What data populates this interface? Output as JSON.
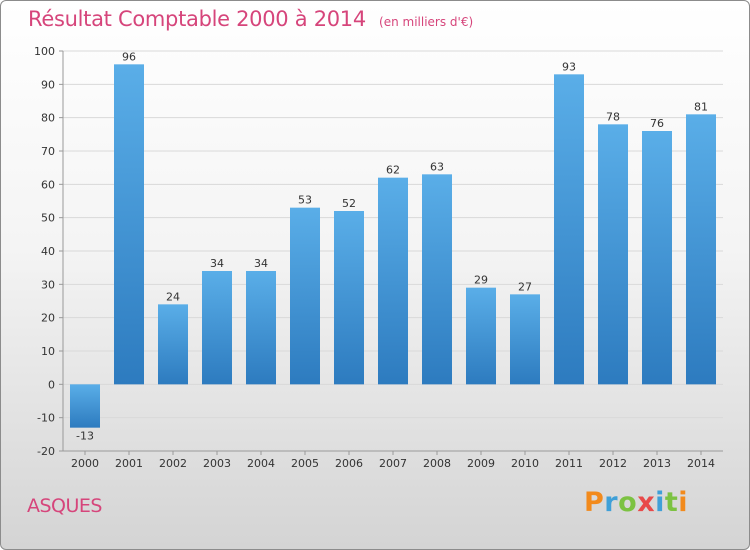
{
  "header": {
    "title": "Résultat Comptable 2000 à 2014",
    "subtitle": "(en milliers d'€)"
  },
  "footer": {
    "town": "ASQUES",
    "logo_text": "Proxiti"
  },
  "colors": {
    "title": "#d6457b",
    "bar_light": "#5aaee8",
    "bar_dark": "#2d7bbf",
    "grid": "#d9d9d9",
    "axis": "#999999"
  },
  "chart_data": {
    "type": "bar",
    "categories": [
      "2000",
      "2001",
      "2002",
      "2003",
      "2004",
      "2005",
      "2006",
      "2007",
      "2008",
      "2009",
      "2010",
      "2011",
      "2012",
      "2013",
      "2014"
    ],
    "values": [
      -13,
      96,
      24,
      34,
      34,
      53,
      52,
      62,
      63,
      29,
      27,
      93,
      78,
      76,
      81
    ],
    "ylim": [
      -20,
      100
    ],
    "yticks": [
      -20,
      -10,
      0,
      10,
      20,
      30,
      40,
      50,
      60,
      70,
      80,
      90,
      100
    ],
    "title": "Résultat Comptable 2000 à 2014",
    "xlabel": "",
    "ylabel": "",
    "grid": "horizontal",
    "legend": "none"
  }
}
